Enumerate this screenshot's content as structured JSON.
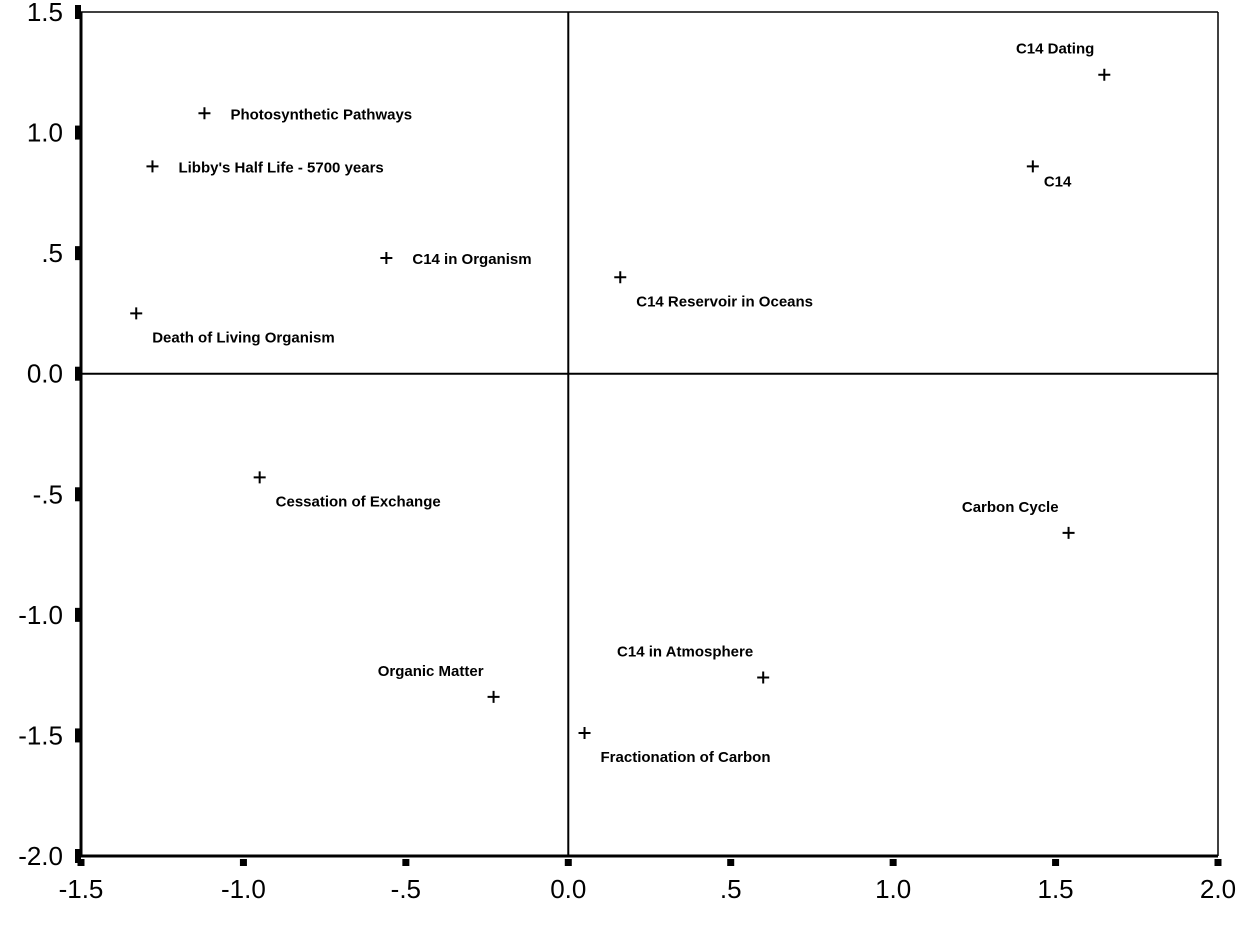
{
  "chart_data": {
    "type": "scatter",
    "title": "",
    "xlabel": "",
    "ylabel": "",
    "xlim": [
      -1.5,
      2.0
    ],
    "ylim": [
      -2.0,
      1.5
    ],
    "x_ticks": [
      {
        "value": -1.5,
        "label": "-1.5"
      },
      {
        "value": -1.0,
        "label": "-1.0"
      },
      {
        "value": -0.5,
        "label": "-.5"
      },
      {
        "value": 0.0,
        "label": "0.0"
      },
      {
        "value": 0.5,
        "label": ".5"
      },
      {
        "value": 1.0,
        "label": "1.0"
      },
      {
        "value": 1.5,
        "label": "1.5"
      },
      {
        "value": 2.0,
        "label": "2.0"
      }
    ],
    "y_ticks": [
      {
        "value": 1.5,
        "label": "1.5"
      },
      {
        "value": 1.0,
        "label": "1.0"
      },
      {
        "value": 0.5,
        "label": ".5"
      },
      {
        "value": 0.0,
        "label": "0.0"
      },
      {
        "value": -0.5,
        "label": "-.5"
      },
      {
        "value": -1.0,
        "label": "-1.0"
      },
      {
        "value": -1.5,
        "label": "-1.5"
      },
      {
        "value": -2.0,
        "label": "-2.0"
      }
    ],
    "reference_lines": {
      "x": 0,
      "y": 0
    },
    "grid": false,
    "marker": "plus",
    "points": [
      {
        "label": "C14 Dating",
        "x": 1.65,
        "y": 1.24,
        "label_pos": "above-left"
      },
      {
        "label": "C14",
        "x": 1.43,
        "y": 0.86,
        "label_pos": "right-below"
      },
      {
        "label": "Photosynthetic Pathways",
        "x": -1.12,
        "y": 1.08,
        "label_pos": "right"
      },
      {
        "label": "Libby's Half Life - 5700 years",
        "x": -1.28,
        "y": 0.86,
        "label_pos": "right"
      },
      {
        "label": "C14 in Organism",
        "x": -0.56,
        "y": 0.48,
        "label_pos": "right"
      },
      {
        "label": "C14 Reservoir in Oceans",
        "x": 0.16,
        "y": 0.4,
        "label_pos": "below-right"
      },
      {
        "label": "Death of Living Organism",
        "x": -1.33,
        "y": 0.25,
        "label_pos": "below-right"
      },
      {
        "label": "Cessation of Exchange",
        "x": -0.95,
        "y": -0.43,
        "label_pos": "below-right"
      },
      {
        "label": "Carbon Cycle",
        "x": 1.54,
        "y": -0.66,
        "label_pos": "above-left"
      },
      {
        "label": "Organic Matter",
        "x": -0.23,
        "y": -1.34,
        "label_pos": "above-left"
      },
      {
        "label": "C14 in Atmosphere",
        "x": 0.6,
        "y": -1.26,
        "label_pos": "above-left"
      },
      {
        "label": "Fractionation of Carbon",
        "x": 0.05,
        "y": -1.49,
        "label_pos": "below-right"
      }
    ]
  }
}
